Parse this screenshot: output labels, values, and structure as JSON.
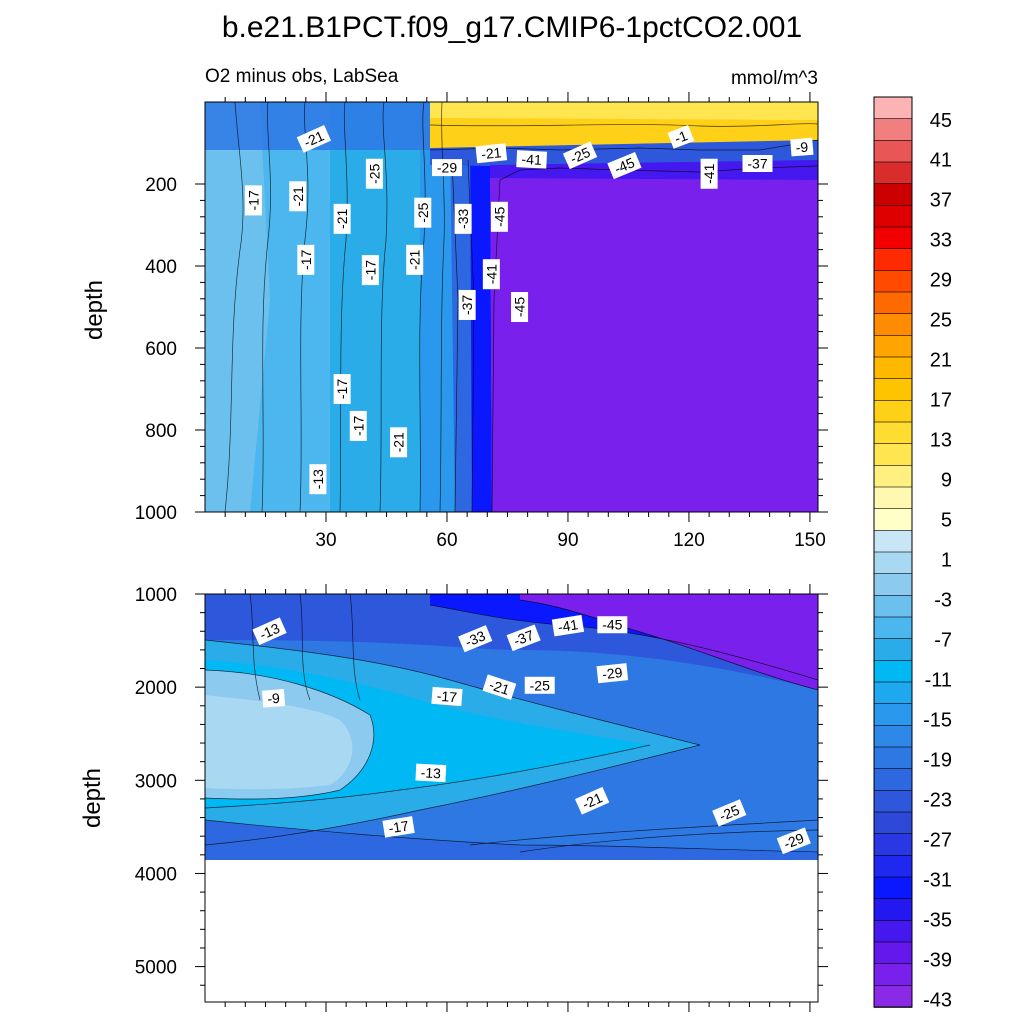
{
  "chart_data": [
    {
      "type": "contour",
      "panel": "top",
      "title": "b.e21.B1PCT.f09_g17.CMIP6-1pctCO2.001",
      "left_label": "O2 minus obs, LabSea",
      "units": "mmol/m^3",
      "xlabel": "",
      "ylabel": "depth",
      "xlim": [
        0,
        152
      ],
      "ylim": [
        1000,
        0
      ],
      "xticks": [
        30,
        60,
        90,
        120,
        150
      ],
      "xtick_labels": [
        "30",
        "60",
        "90",
        "120",
        "150"
      ],
      "yticks": [
        200,
        400,
        600,
        800,
        1000
      ],
      "ytick_labels": [
        "200",
        "400",
        "600",
        "800",
        "1000"
      ],
      "contour_labels": [
        {
          "text": "-21",
          "x": 27,
          "y": 90
        },
        {
          "text": "-25",
          "x": 42,
          "y": 175
        },
        {
          "text": "-17",
          "x": 12,
          "y": 240
        },
        {
          "text": "-21",
          "x": 23,
          "y": 230
        },
        {
          "text": "-21",
          "x": 34,
          "y": 285
        },
        {
          "text": "-25",
          "x": 54,
          "y": 270
        },
        {
          "text": "-33",
          "x": 64,
          "y": 285
        },
        {
          "text": "-45",
          "x": 73,
          "y": 280
        },
        {
          "text": "-29",
          "x": 60,
          "y": 160
        },
        {
          "text": "-21",
          "x": 71,
          "y": 125
        },
        {
          "text": "-41",
          "x": 81,
          "y": 140
        },
        {
          "text": "-25",
          "x": 93,
          "y": 130
        },
        {
          "text": "-45",
          "x": 104,
          "y": 155
        },
        {
          "text": "-1",
          "x": 118,
          "y": 85
        },
        {
          "text": "-41",
          "x": 125,
          "y": 175
        },
        {
          "text": "-37",
          "x": 137,
          "y": 150
        },
        {
          "text": "-9",
          "x": 148,
          "y": 110
        },
        {
          "text": "-17",
          "x": 25,
          "y": 385
        },
        {
          "text": "-17",
          "x": 41,
          "y": 410
        },
        {
          "text": "-21",
          "x": 52,
          "y": 385
        },
        {
          "text": "-41",
          "x": 71,
          "y": 420
        },
        {
          "text": "-37",
          "x": 65,
          "y": 495
        },
        {
          "text": "-45",
          "x": 78,
          "y": 500
        },
        {
          "text": "-17",
          "x": 34,
          "y": 700
        },
        {
          "text": "-17",
          "x": 38,
          "y": 790
        },
        {
          "text": "-21",
          "x": 48,
          "y": 830
        },
        {
          "text": "-13",
          "x": 28,
          "y": 920
        }
      ]
    },
    {
      "type": "contour",
      "panel": "bottom",
      "xlabel": "",
      "ylabel": "depth",
      "xlim": [
        0,
        152
      ],
      "ylim": [
        5380,
        1000
      ],
      "yticks": [
        1000,
        2000,
        3000,
        4000,
        5000
      ],
      "ytick_labels": [
        "1000",
        "2000",
        "3000",
        "4000",
        "5000"
      ],
      "bottom_of_data": 3850,
      "contour_labels": [
        {
          "text": "-13",
          "x": 16,
          "y": 1400
        },
        {
          "text": "-33",
          "x": 67,
          "y": 1480
        },
        {
          "text": "-37",
          "x": 79,
          "y": 1470
        },
        {
          "text": "-41",
          "x": 90,
          "y": 1340
        },
        {
          "text": "-45",
          "x": 101,
          "y": 1330
        },
        {
          "text": "-9",
          "x": 17,
          "y": 2120
        },
        {
          "text": "-17",
          "x": 60,
          "y": 2100
        },
        {
          "text": "-21",
          "x": 73,
          "y": 2000
        },
        {
          "text": "-25",
          "x": 83,
          "y": 1980
        },
        {
          "text": "-29",
          "x": 101,
          "y": 1850
        },
        {
          "text": "-13",
          "x": 56,
          "y": 2920
        },
        {
          "text": "-21",
          "x": 96,
          "y": 3220
        },
        {
          "text": "-25",
          "x": 130,
          "y": 3350
        },
        {
          "text": "-29",
          "x": 146,
          "y": 3650
        },
        {
          "text": "-17",
          "x": 48,
          "y": 3500
        }
      ]
    }
  ],
  "colorbar": {
    "labels": [
      "45",
      "41",
      "37",
      "33",
      "29",
      "25",
      "21",
      "17",
      "13",
      "9",
      "5",
      "1",
      "-3",
      "-7",
      "-11",
      "-15",
      "-19",
      "-23",
      "-27",
      "-31",
      "-35",
      "-39",
      "-43"
    ],
    "colors": [
      "#fbb3b3",
      "#f27f7f",
      "#e85656",
      "#db2c2c",
      "#cc0000",
      "#de0000",
      "#f20000",
      "#ff2a00",
      "#ff4a00",
      "#ff6a00",
      "#ff8c00",
      "#ffa400",
      "#ffb800",
      "#ffc400",
      "#ffd018",
      "#ffdc30",
      "#ffe650",
      "#fff080",
      "#fff8b0",
      "#ffffc8",
      "#c8e6f6",
      "#a8d8f2",
      "#8ccaf0",
      "#6cc0ee",
      "#4cb6ee",
      "#2aace8",
      "#00b8f4",
      "#1ea8f0",
      "#2a98ec",
      "#2e88e8",
      "#2e78e4",
      "#2e68e0",
      "#2e58dc",
      "#2e48d8",
      "#2a38e4",
      "#1e28f0",
      "#0a18ff",
      "#2418f0",
      "#4418ee",
      "#6418ec",
      "#7a20ec",
      "#8a2ae6"
    ]
  }
}
